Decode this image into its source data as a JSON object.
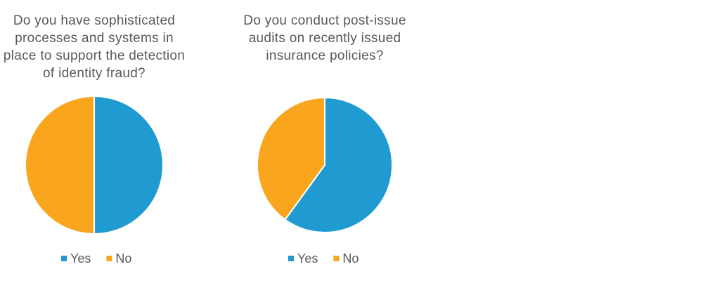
{
  "chart_data": [
    {
      "type": "pie",
      "title": "Do you have sophisticated processes and systems in place to support the detection of identity fraud?",
      "categories": [
        "Yes",
        "No"
      ],
      "values": [
        50,
        50
      ],
      "colors": [
        "#1f9bd1",
        "#f9a51d"
      ]
    },
    {
      "type": "pie",
      "title": "Do you conduct post-issue audits on recently issued insurance policies?",
      "categories": [
        "Yes",
        "No"
      ],
      "values": [
        60,
        40
      ],
      "colors": [
        "#1f9bd1",
        "#f9a51d"
      ]
    }
  ]
}
